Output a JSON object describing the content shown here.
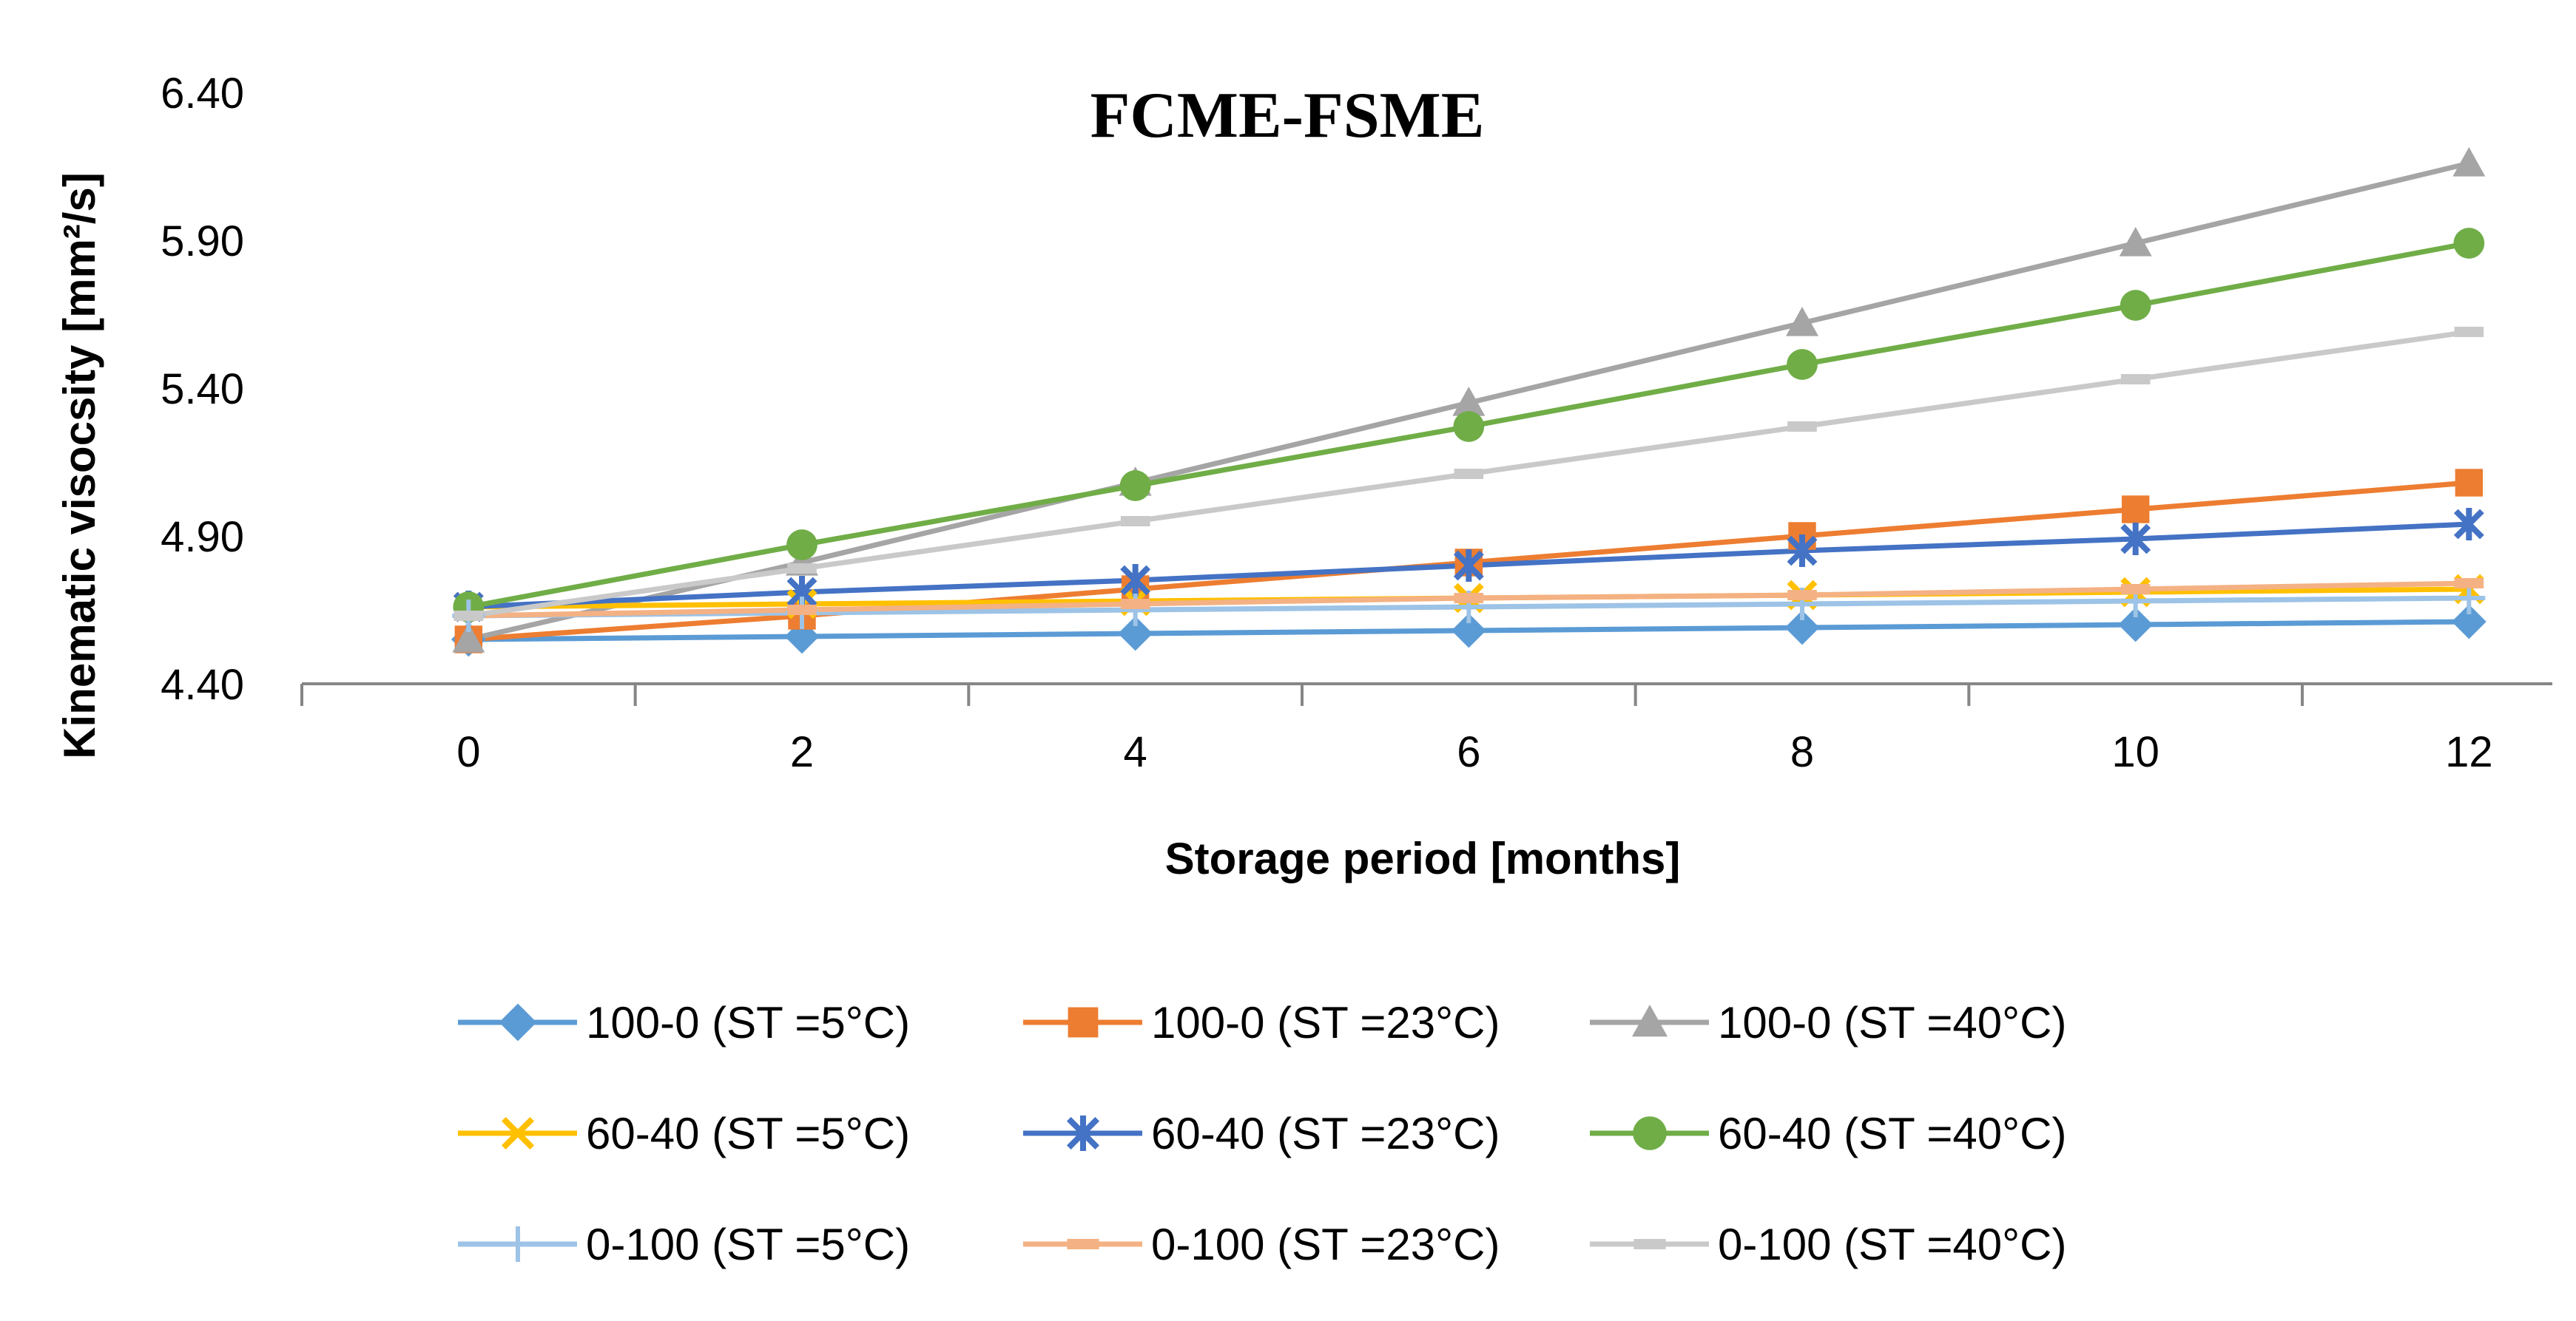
{
  "chart_data": {
    "type": "line",
    "title": "FCME-FSME",
    "xlabel": "Storage period [months]",
    "ylabel": "Kinematic visocsity [mm²/s]",
    "x": [
      0,
      2,
      4,
      6,
      8,
      10,
      12
    ],
    "x_tick_labels": [
      "0",
      "2",
      "4",
      "6",
      "8",
      "10",
      "12"
    ],
    "xlim": [
      -1,
      12.5
    ],
    "ylim": [
      4.4,
      6.4
    ],
    "y_ticks": [
      4.4,
      4.9,
      5.4,
      5.9,
      6.4
    ],
    "y_tick_labels": [
      "4.40",
      "4.90",
      "5.40",
      "5.90",
      "6.40"
    ],
    "grid": false,
    "legend_position": "bottom",
    "series": [
      {
        "name": "100-0 (ST =5°C)",
        "color": "#5B9BD5",
        "marker": "diamond",
        "values": [
          4.55,
          4.56,
          4.57,
          4.58,
          4.59,
          4.6,
          4.61
        ]
      },
      {
        "name": "100-0 (ST =23°C)",
        "color": "#ED7D31",
        "marker": "square",
        "values": [
          4.55,
          4.63,
          4.72,
          4.81,
          4.9,
          4.99,
          5.08
        ]
      },
      {
        "name": "100-0 (ST =40°C)",
        "color": "#A5A5A5",
        "marker": "triangle",
        "values": [
          4.55,
          4.81,
          5.08,
          5.35,
          5.62,
          5.89,
          6.16
        ]
      },
      {
        "name": "60-40 (ST =5°C)",
        "color": "#FFC000",
        "marker": "x",
        "values": [
          4.66,
          4.67,
          4.68,
          4.69,
          4.7,
          4.71,
          4.72
        ]
      },
      {
        "name": "60-40 (ST =23°C)",
        "color": "#4472C4",
        "marker": "star",
        "values": [
          4.66,
          4.71,
          4.75,
          4.8,
          4.85,
          4.89,
          4.94
        ]
      },
      {
        "name": "60-40 (ST =40°C)",
        "color": "#70AD47",
        "marker": "circle",
        "values": [
          4.66,
          4.87,
          5.07,
          5.27,
          5.48,
          5.68,
          5.89
        ]
      },
      {
        "name": "0-100 (ST =5°C)",
        "color": "#9DC3E6",
        "marker": "plus",
        "values": [
          4.63,
          4.64,
          4.65,
          4.66,
          4.67,
          4.68,
          4.69
        ]
      },
      {
        "name": "0-100 (ST =23°C)",
        "color": "#F4B183",
        "marker": "dash",
        "values": [
          4.63,
          4.65,
          4.67,
          4.69,
          4.7,
          4.72,
          4.74
        ]
      },
      {
        "name": "0-100 (ST =40°C)",
        "color": "#C9C9C9",
        "marker": "dash",
        "values": [
          4.63,
          4.79,
          4.95,
          5.11,
          5.27,
          5.43,
          5.59
        ]
      }
    ]
  }
}
